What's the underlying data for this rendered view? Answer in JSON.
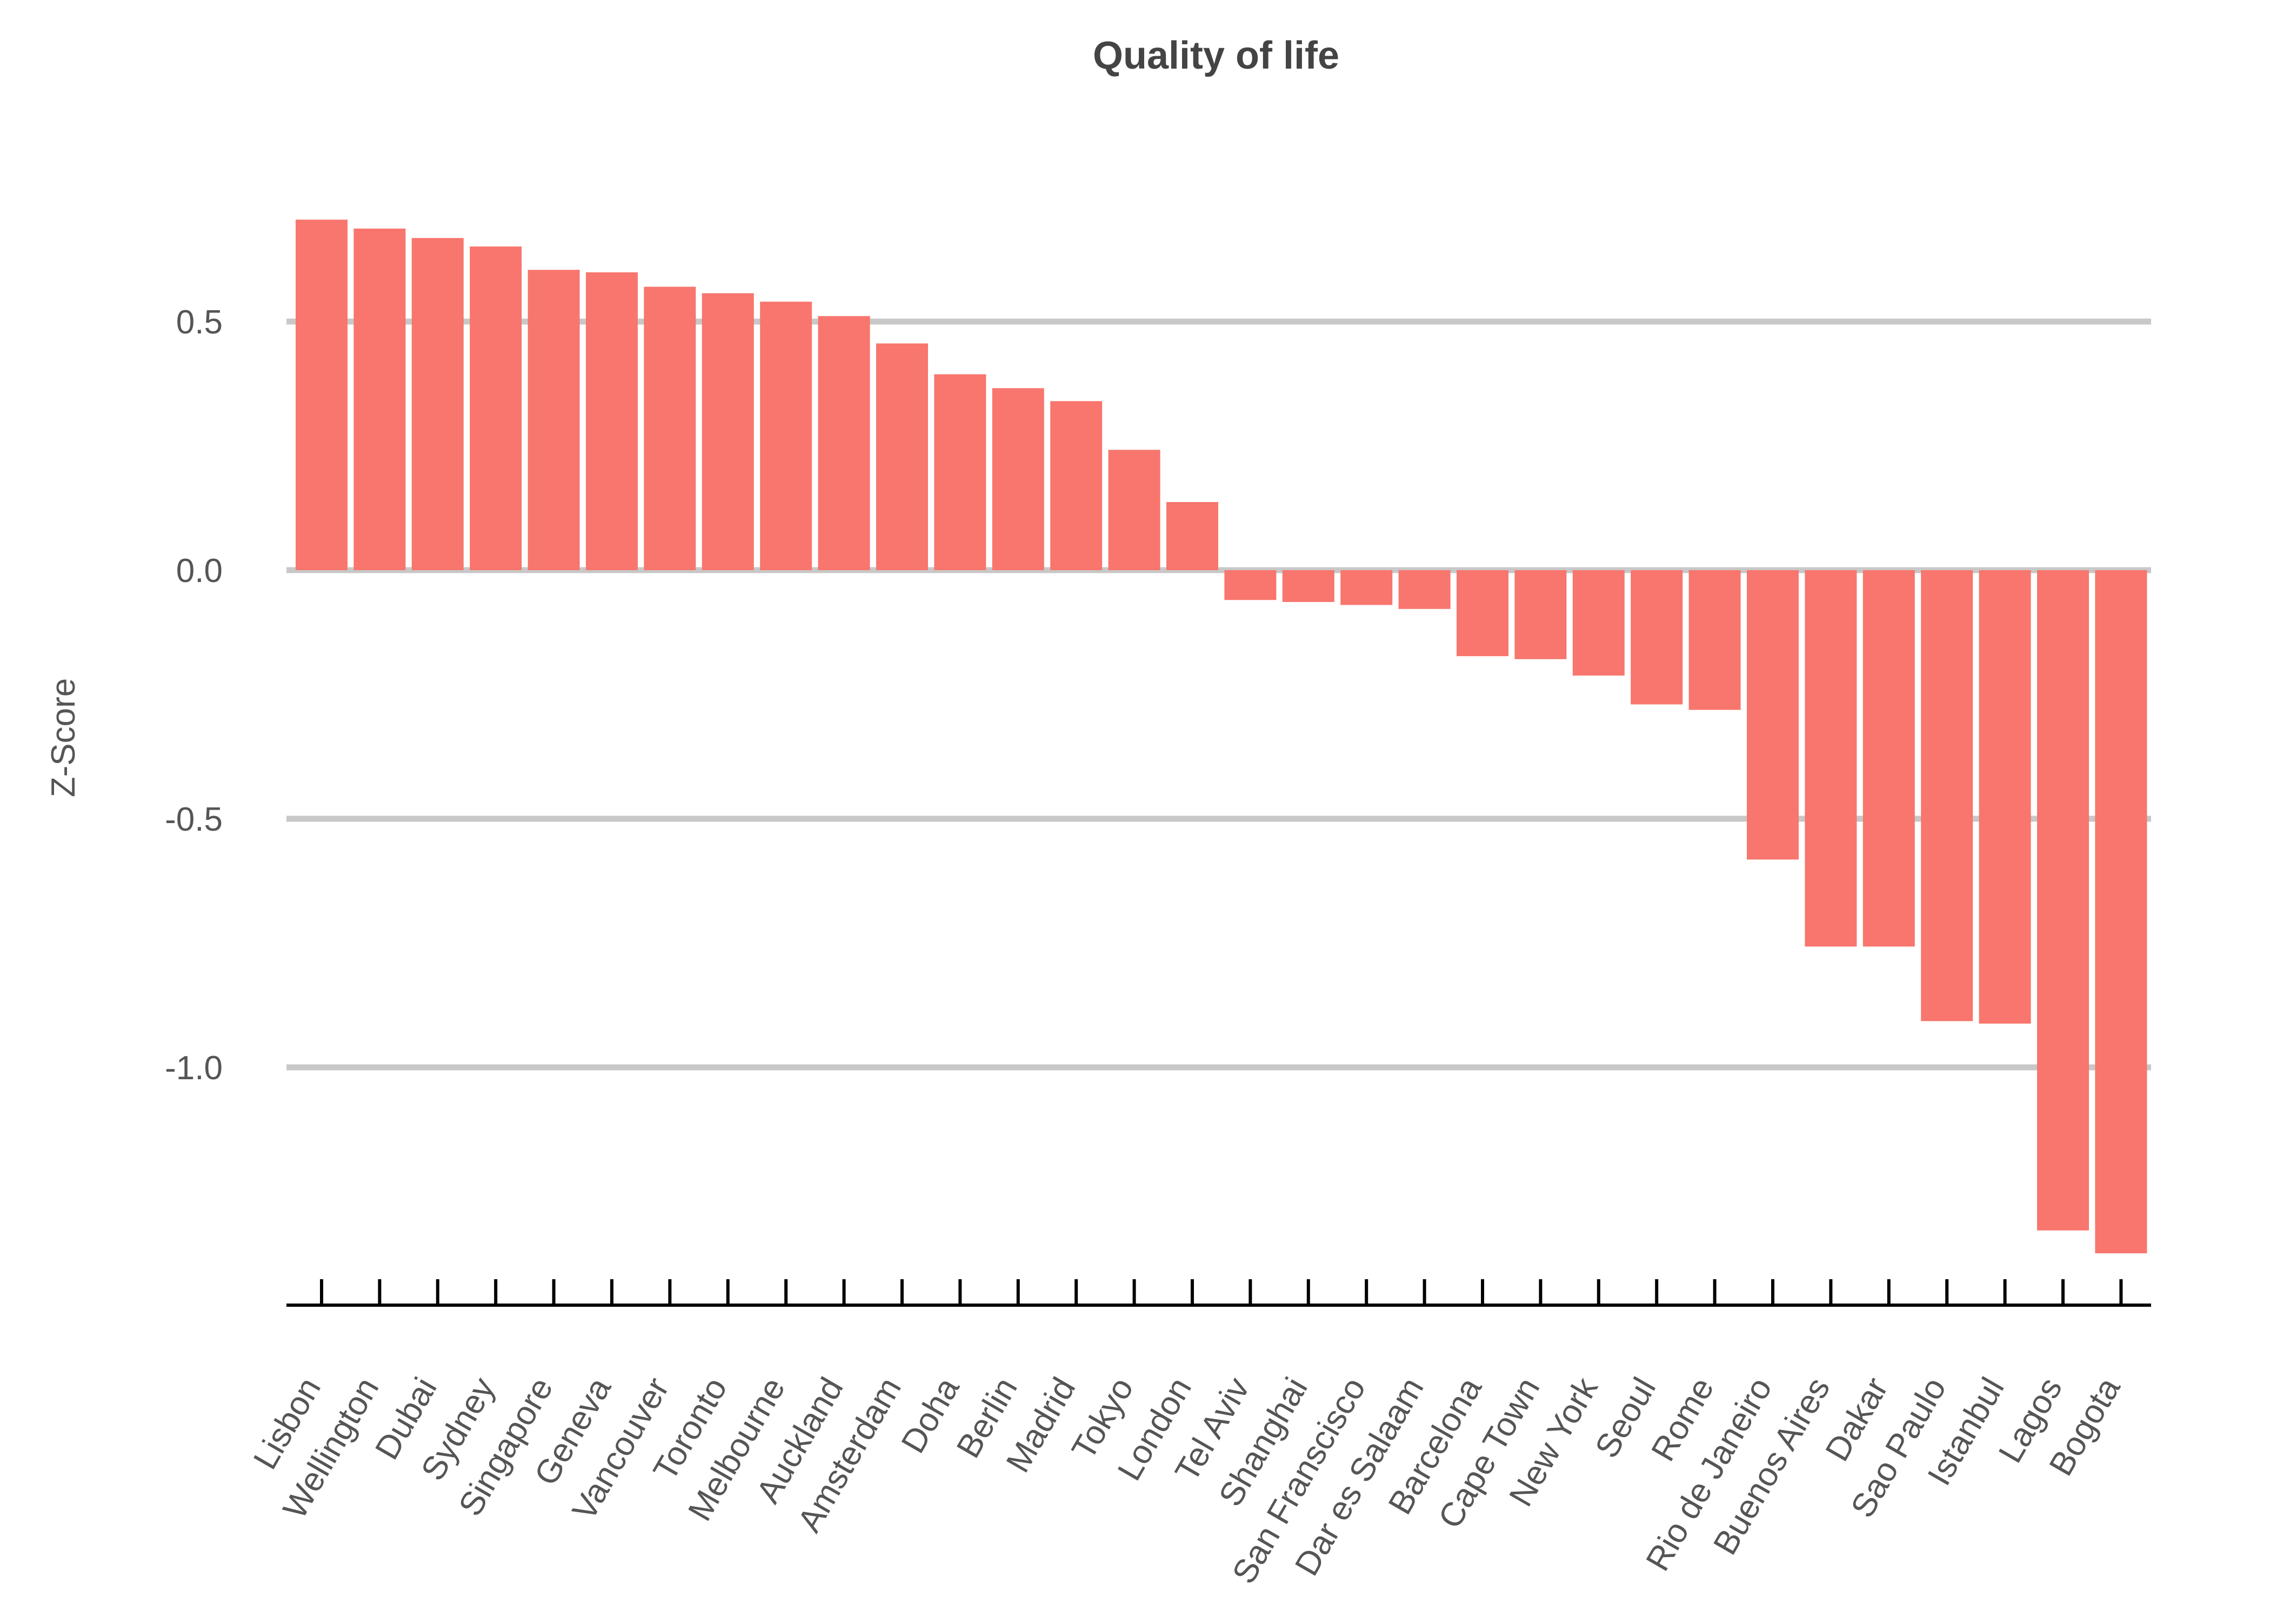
{
  "chart_data": {
    "type": "bar",
    "title": "Quality of life",
    "xlabel": "",
    "ylabel": "Z-Score",
    "ylim": [
      -1.48,
      0.8
    ],
    "yticks": [
      0.5,
      0.0,
      -0.5,
      -1.0
    ],
    "ytick_labels": [
      "0.5",
      "0.0",
      "-0.5",
      "-1.0"
    ],
    "grid": "horizontal",
    "bar_color": "#F8766D",
    "grid_color": "#C8C8C8",
    "categories": [
      "Lisbon",
      "Wellington",
      "Dubai",
      "Sydney",
      "Singapore",
      "Geneva",
      "Vancouver",
      "Toronto",
      "Melbourne",
      "Auckland",
      "Amsterdam",
      "Doha",
      "Berlin",
      "Madrid",
      "Tokyo",
      "London",
      "Tel Aviv",
      "Shanghai",
      "San Franscisco",
      "Dar es Salaam",
      "Barcelona",
      "Cape Town",
      "New York",
      "Seoul",
      "Rome",
      "Rio de Janeiro",
      "Buenos Aires",
      "Dakar",
      "Sao Paulo",
      "Istanbul",
      "Lagos",
      "Bogota"
    ],
    "values": [
      0.705,
      0.687,
      0.668,
      0.651,
      0.604,
      0.599,
      0.57,
      0.557,
      0.54,
      0.511,
      0.456,
      0.394,
      0.366,
      0.34,
      0.242,
      0.137,
      -0.06,
      -0.064,
      -0.07,
      -0.078,
      -0.173,
      -0.179,
      -0.212,
      -0.27,
      -0.281,
      -0.582,
      -0.757,
      -0.757,
      -0.907,
      -0.912,
      -1.328,
      -1.374
    ]
  }
}
